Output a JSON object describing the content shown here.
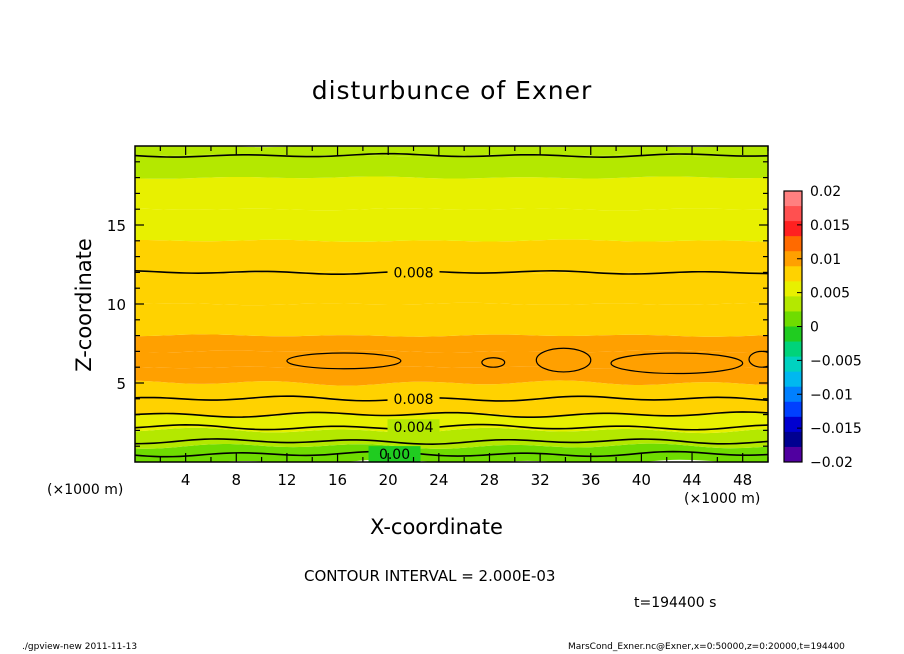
{
  "chart_data": {
    "type": "heatmap",
    "title": "disturbunce of Exner",
    "xlabel": "X-coordinate",
    "ylabel": "Z-coordinate",
    "x_unit": "(×1000 m)",
    "y_unit": "(×1000 m)",
    "xlim": [
      0,
      50
    ],
    "ylim": [
      0,
      20
    ],
    "x_ticks": [
      "4",
      "8",
      "12",
      "16",
      "20",
      "24",
      "28",
      "32",
      "36",
      "40",
      "44",
      "48"
    ],
    "y_ticks": [
      "5",
      "10",
      "15"
    ],
    "contour_labels": [
      "0.008",
      "0.008",
      "0.004",
      "0.00"
    ],
    "contour_levels": [
      0.0,
      0.002,
      0.004,
      0.006,
      0.008,
      0.01,
      0.008
    ],
    "z_profile": {
      "z": [
        0,
        1,
        2,
        3,
        4,
        5,
        6,
        7,
        8,
        10,
        12,
        14,
        16,
        18,
        19.4,
        20
      ],
      "value": [
        0.0,
        0.002,
        0.004,
        0.006,
        0.008,
        0.0092,
        0.0098,
        0.0094,
        0.0089,
        0.0083,
        0.0079,
        0.007,
        0.0063,
        0.0054,
        0.0045,
        0.0043
      ]
    },
    "colorbar": {
      "ticks": [
        "0.02",
        "0.015",
        "0.01",
        "0.005",
        "0",
        "−0.005",
        "−0.01",
        "−0.015",
        "−0.02"
      ],
      "colors": [
        "#ff8080",
        "#ff5050",
        "#ff2020",
        "#ff6a00",
        "#ffa000",
        "#ffd200",
        "#e8f000",
        "#b4e800",
        "#6fdc00",
        "#20cc20",
        "#00d37a",
        "#00d2c0",
        "#00b8f0",
        "#0080ff",
        "#0040ff",
        "#0000d0",
        "#000090",
        "#5000a0"
      ]
    },
    "contour_interval_text": "CONTOUR INTERVAL = 2.000E-03",
    "time_text": "t=194400 s"
  },
  "footer": {
    "left": "./gpview-new   2011-11-13",
    "right": "MarsCond_Exner.nc@Exner,x=0:50000,z=0:20000,t=194400"
  }
}
